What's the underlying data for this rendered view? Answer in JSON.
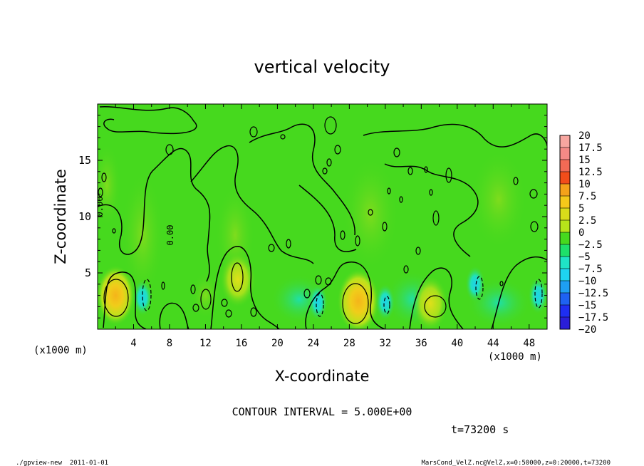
{
  "chart_data": {
    "type": "heatmap",
    "title": "vertical velocity",
    "xlabel": "X-coordinate",
    "ylabel": "Z-coordinate",
    "x_units_left": "(x1000 m)",
    "x_units_right": "(x1000 m)",
    "xlim": [
      0,
      50
    ],
    "ylim": [
      0,
      20
    ],
    "xticks": [
      "4",
      "8",
      "12",
      "16",
      "20",
      "24",
      "28",
      "32",
      "36",
      "40",
      "44",
      "48"
    ],
    "xtick_values": [
      4,
      8,
      12,
      16,
      20,
      24,
      28,
      32,
      36,
      40,
      44,
      48
    ],
    "yticks": [
      "5",
      "10",
      "15"
    ],
    "ytick_values": [
      5,
      10,
      15
    ],
    "colorbar": {
      "labels": [
        "20",
        "17.5",
        "15",
        "12.5",
        "10",
        "7.5",
        "5",
        "2.5",
        "0",
        "−2.5",
        "−5",
        "−7.5",
        "−10",
        "−12.5",
        "−15",
        "−17.5",
        "−20"
      ],
      "colors": [
        "#f7a6a0",
        "#f48a86",
        "#f26a55",
        "#f24d1a",
        "#f5a21a",
        "#f5c91a",
        "#d9dc1a",
        "#b6e41a",
        "#46d91e",
        "#1ee06a",
        "#1fe3c6",
        "#1ed4f0",
        "#1e9ff2",
        "#1e62f2",
        "#1e2ef2",
        "#2a1ed8",
        "#6a1ec6"
      ]
    },
    "contour_interval_text": "CONTOUR INTERVAL = 5.000E+00",
    "contour_labels": [
      "0.00",
      "0.00"
    ],
    "updraft_cells": [
      {
        "x": 2,
        "z": 3.0,
        "w": 7
      },
      {
        "x": 12,
        "z": 3.0,
        "w": 4
      },
      {
        "x": 15.6,
        "z": 4.4,
        "w": 6
      },
      {
        "x": 29,
        "z": 2.5,
        "w": 8
      },
      {
        "x": 37,
        "z": 2.3,
        "w": 6
      }
    ],
    "downdraft_cells": [
      {
        "x": 5,
        "z": 2.8,
        "w": -5
      },
      {
        "x": 24.5,
        "z": 2.4,
        "w": -5
      },
      {
        "x": 32,
        "z": 2.4,
        "w": -3
      },
      {
        "x": 42,
        "z": 4.0,
        "w": -5
      },
      {
        "x": 49,
        "z": 3.0,
        "w": -5
      }
    ],
    "time_label": "t=73200 s"
  },
  "footer": {
    "left": "./gpview-new  2011-01-01",
    "right": "MarsCond_VelZ.nc@VelZ,x=0:50000,z=0:20000,t=73200"
  }
}
